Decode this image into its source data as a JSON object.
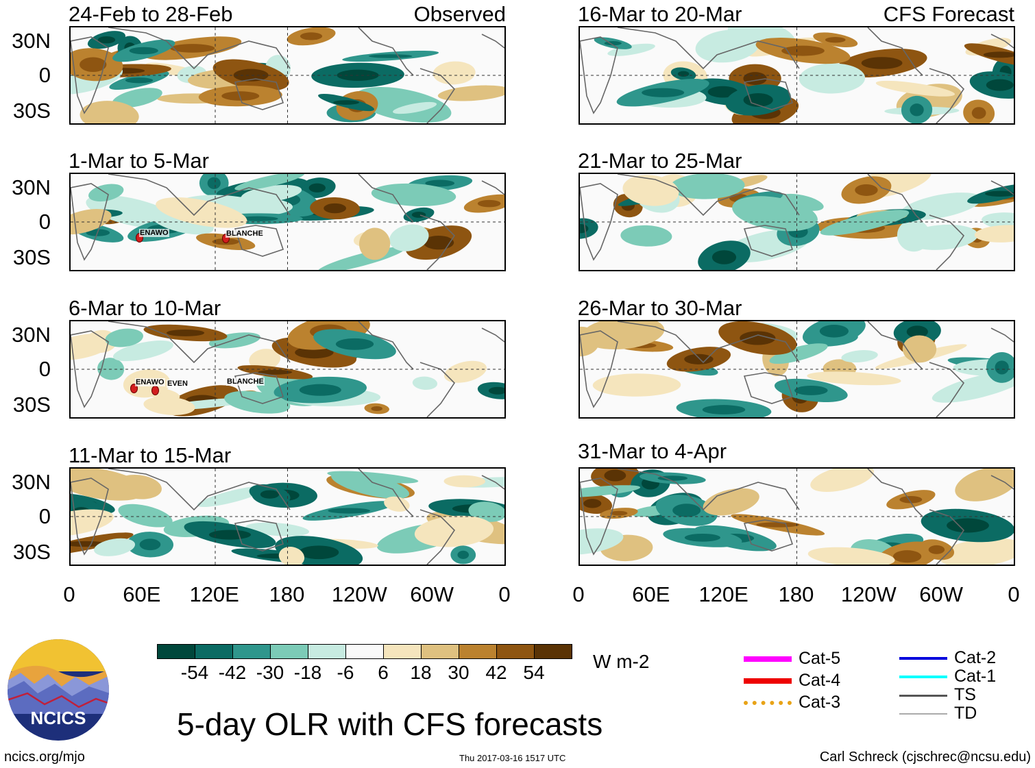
{
  "title": "5-day OLR with CFS forecasts",
  "units": "W m-2",
  "site": "ncics.org/mjo",
  "timestamp": "Thu 2017-03-16 1517 UTC",
  "author": "Carl Schreck (cjschrec@ncsu.edu)",
  "logo_text": "NCICS",
  "column_labels": {
    "observed": "Observed",
    "forecast": "CFS Forecast"
  },
  "lat_labels": [
    "30N",
    "0",
    "30S"
  ],
  "lon_labels": [
    "0",
    "60E",
    "120E",
    "180",
    "120W",
    "60W",
    "0"
  ],
  "panels_left": [
    {
      "title": "24-Feb to 28-Feb"
    },
    {
      "title": "1-Mar to 5-Mar"
    },
    {
      "title": "6-Mar to 10-Mar"
    },
    {
      "title": "11-Mar to 15-Mar"
    }
  ],
  "panels_right": [
    {
      "title": "16-Mar to 20-Mar"
    },
    {
      "title": "21-Mar to 25-Mar"
    },
    {
      "title": "26-Mar to 30-Mar"
    },
    {
      "title": "31-Mar to 4-Apr"
    }
  ],
  "storms": {
    "p2": [
      "ENAWO",
      "BLANCHE"
    ],
    "p3": [
      "ENAWO",
      "EVEN",
      "BLANCHE"
    ]
  },
  "colorbar": {
    "colors": [
      "#00473b",
      "#0b6b63",
      "#2f968c",
      "#7ccbb7",
      "#c7ebe1",
      "#f9f9f9",
      "#f5e5bd",
      "#dfc180",
      "#bb822f",
      "#8e5511",
      "#5a3305"
    ],
    "labels": [
      "-54",
      "-42",
      "-30",
      "-18",
      "-6",
      "6",
      "18",
      "30",
      "42",
      "54"
    ]
  },
  "legend": [
    {
      "label": "Cat-5",
      "color": "#ff00ff"
    },
    {
      "label": "Cat-4",
      "color": "#ee0000"
    },
    {
      "label": "Cat-3",
      "color": "#e8a317"
    },
    {
      "label": "Cat-2",
      "color": "#0000dd"
    },
    {
      "label": "Cat-1",
      "color": "#00ffff"
    },
    {
      "label": "TS",
      "color": "#555555"
    },
    {
      "label": "TD",
      "color": "#aaaaaa"
    }
  ]
}
